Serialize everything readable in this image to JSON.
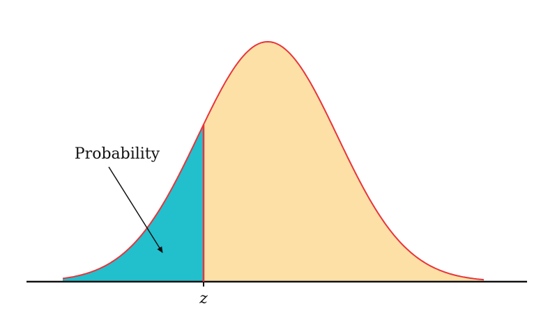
{
  "diagram": {
    "annotation_label": "Probability",
    "z_label": "z",
    "colors": {
      "shaded_area": "#22bfcd",
      "unshaded_area": "#fde0a6",
      "curve": "#e8343a",
      "z_line": "#e8343a",
      "axis": "#111111",
      "text": "#111111",
      "arrow": "#111111"
    }
  }
}
